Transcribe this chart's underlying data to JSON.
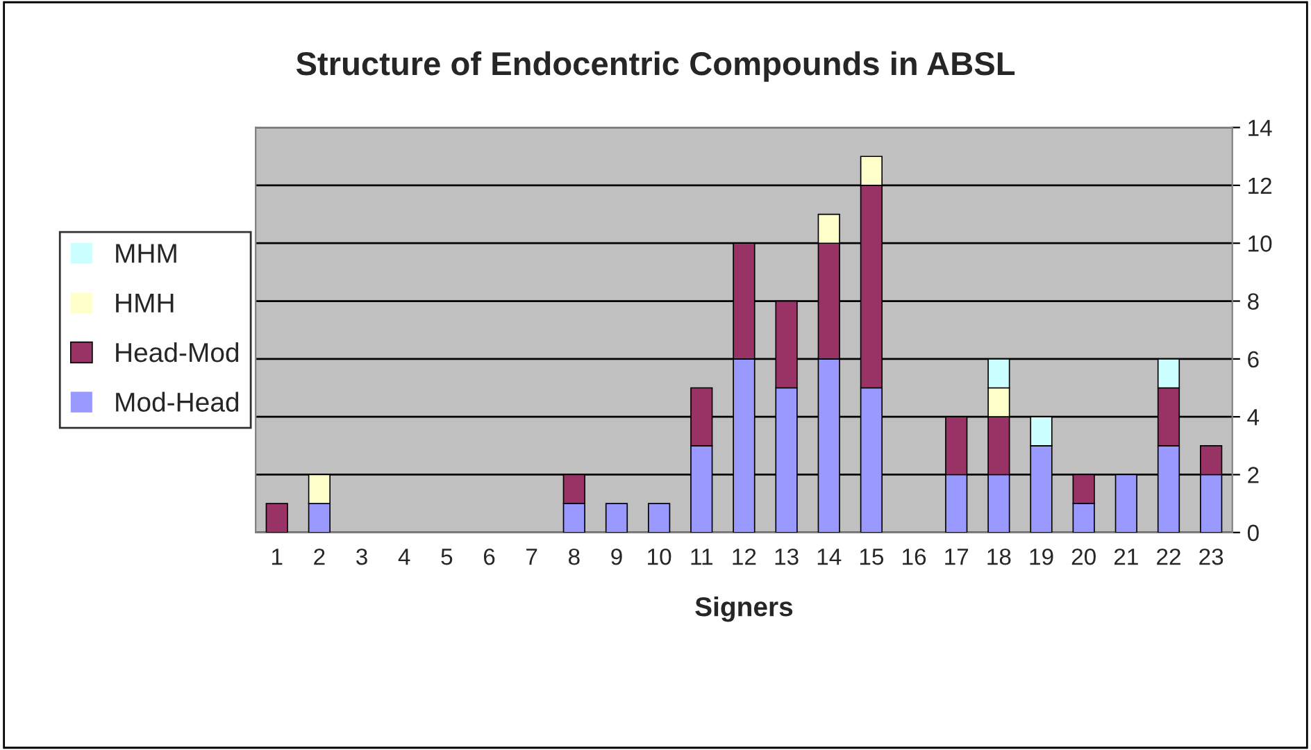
{
  "chart_data": {
    "type": "bar",
    "title": "Structure of Endocentric Compounds in ABSL",
    "xlabel": "Signers",
    "categories": [
      "1",
      "2",
      "3",
      "4",
      "5",
      "6",
      "7",
      "8",
      "9",
      "10",
      "11",
      "12",
      "13",
      "14",
      "15",
      "16",
      "17",
      "18",
      "19",
      "20",
      "21",
      "22",
      "23"
    ],
    "stacked": true,
    "series": [
      {
        "name": "Mod-Head",
        "color": "#9999ff",
        "values": [
          0,
          1,
          0,
          0,
          0,
          0,
          0,
          1,
          1,
          1,
          3,
          6,
          5,
          6,
          5,
          0,
          2,
          2,
          3,
          1,
          2,
          3,
          2
        ]
      },
      {
        "name": "Head-Mod",
        "color": "#993366",
        "values": [
          1,
          0,
          0,
          0,
          0,
          0,
          0,
          1,
          0,
          0,
          2,
          4,
          3,
          4,
          7,
          0,
          2,
          2,
          0,
          1,
          0,
          2,
          1
        ]
      },
      {
        "name": "HMH",
        "color": "#ffffcc",
        "values": [
          0,
          1,
          0,
          0,
          0,
          0,
          0,
          0,
          0,
          0,
          0,
          0,
          0,
          1,
          1,
          0,
          0,
          1,
          0,
          0,
          0,
          0,
          0
        ]
      },
      {
        "name": "MHM",
        "color": "#ccffff",
        "values": [
          0,
          0,
          0,
          0,
          0,
          0,
          0,
          0,
          0,
          0,
          0,
          0,
          0,
          0,
          0,
          0,
          0,
          1,
          1,
          0,
          0,
          1,
          0
        ]
      }
    ],
    "ylim": [
      0,
      14
    ],
    "yticks": [
      0,
      2,
      4,
      6,
      8,
      10,
      12,
      14
    ],
    "grid": "y",
    "legend": "left"
  }
}
